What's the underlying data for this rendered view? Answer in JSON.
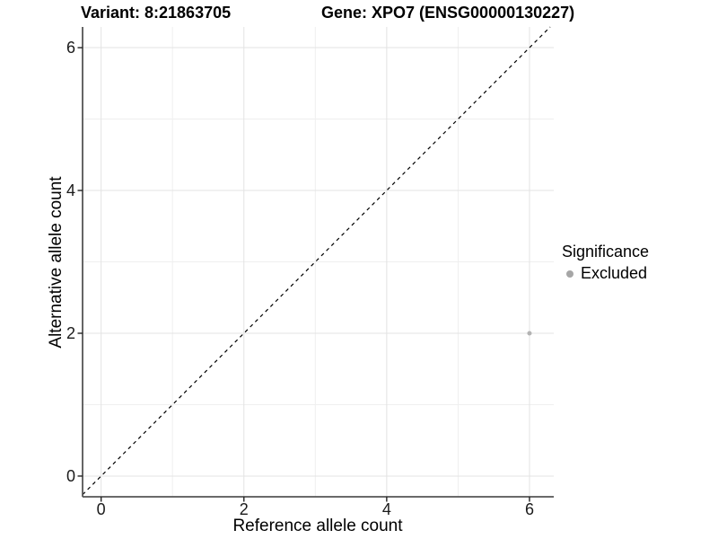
{
  "header": {
    "variant_title": "Variant: 8:21863705",
    "gene_title": "Gene: XPO7 (ENSG00000130227)"
  },
  "chart_data": {
    "type": "scatter",
    "xlabel": "Reference allele count",
    "ylabel": "Alternative allele count",
    "xticks": [
      0,
      2,
      4,
      6
    ],
    "yticks": [
      0,
      2,
      4,
      6
    ],
    "minor_gridlines": [
      1,
      3,
      5
    ],
    "xlim": [
      -0.26,
      6.34
    ],
    "ylim": [
      -0.29,
      6.29
    ],
    "grid": "on",
    "points": [
      {
        "x": 6,
        "y": 2,
        "significance": "Excluded"
      }
    ],
    "reference_line": {
      "kind": "identity",
      "slope": 1,
      "intercept": 0,
      "style": "dashed"
    },
    "legend": {
      "title": "Significance",
      "position": "right",
      "entries": [
        {
          "label": "Excluded",
          "color": "#a6a6a6"
        }
      ]
    },
    "colors": {
      "point": "#b3b3b3",
      "grid_major": "#e3e3e3",
      "grid_minor": "#efefef",
      "axis_line": "#555555",
      "tick_mark": "#222222",
      "dashed_line": "#000000"
    }
  }
}
